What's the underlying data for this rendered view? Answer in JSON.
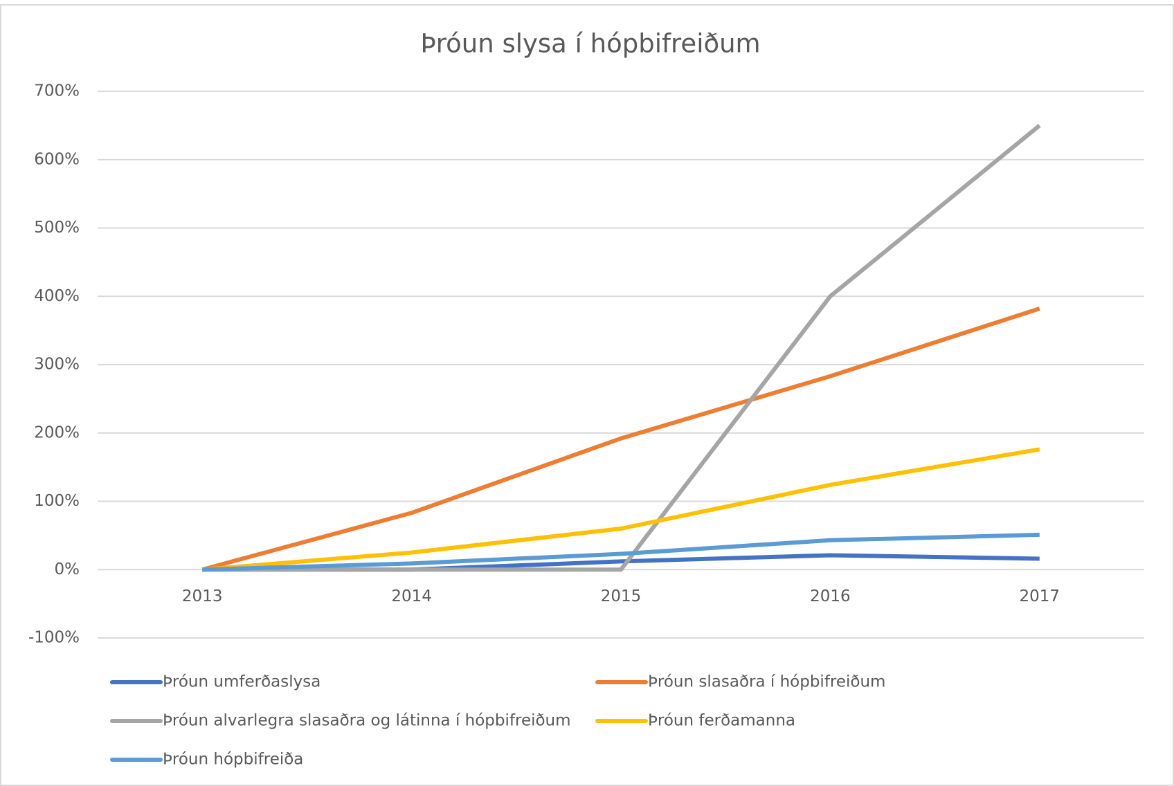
{
  "chart_data": {
    "type": "line",
    "title": "Þróun slysa í hópbifreiðum",
    "categories": [
      "2013",
      "2014",
      "2015",
      "2016",
      "2017"
    ],
    "series": [
      {
        "name": "Þróun umferðaslysa",
        "color": "#4472c4",
        "values": [
          0,
          0,
          12,
          21,
          16
        ]
      },
      {
        "name": "Þróun slasaðra í hópbifreiðum",
        "color": "#ed7d31",
        "values": [
          0,
          83,
          192,
          283,
          382
        ]
      },
      {
        "name": "Þróun alvarlegra slasaðra og látinna í hópbifreiðum",
        "color": "#a5a5a5",
        "values": [
          0,
          0,
          0,
          400,
          650
        ]
      },
      {
        "name": "Þróun ferðamanna",
        "color": "#ffc000",
        "values": [
          0,
          25,
          60,
          124,
          176
        ]
      },
      {
        "name": "Þróun hópbifreiða",
        "color": "#5b9bd5",
        "values": [
          0,
          9,
          23,
          43,
          51
        ]
      }
    ],
    "ylim": [
      -100,
      700
    ],
    "yticks": [
      {
        "value": -100,
        "label": "-100%"
      },
      {
        "value": 0,
        "label": "0%"
      },
      {
        "value": 100,
        "label": "100%"
      },
      {
        "value": 200,
        "label": "200%"
      },
      {
        "value": 300,
        "label": "300%"
      },
      {
        "value": 400,
        "label": "400%"
      },
      {
        "value": 500,
        "label": "500%"
      },
      {
        "value": 600,
        "label": "600%"
      },
      {
        "value": 700,
        "label": "700%"
      }
    ],
    "grid": true,
    "legend": "bottom"
  }
}
